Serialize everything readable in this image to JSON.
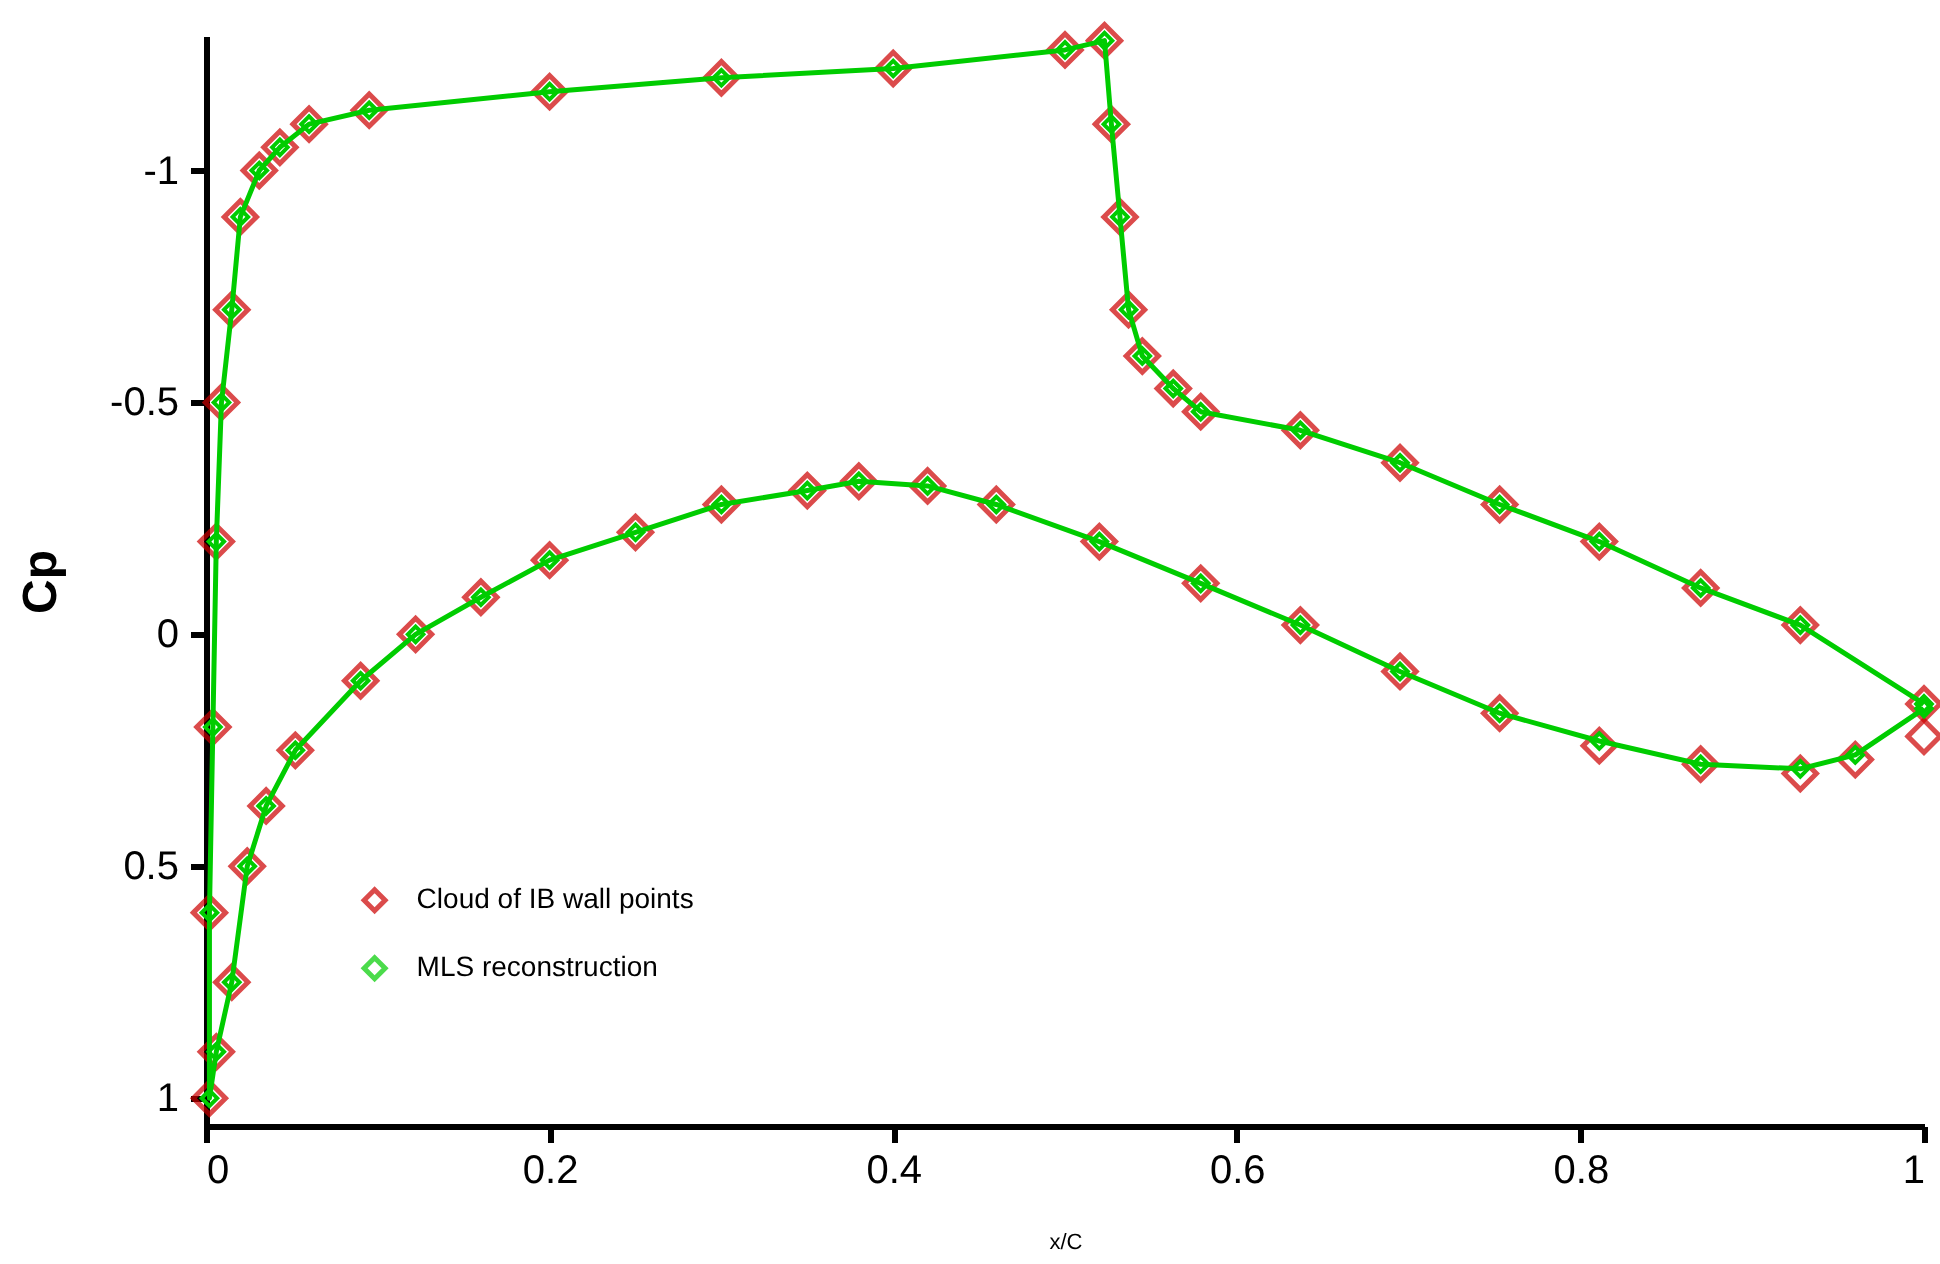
{
  "chart_data": {
    "type": "line",
    "xlabel": "x/C",
    "ylabel": "Cp",
    "xlim": [
      0,
      1
    ],
    "xticks": [
      0,
      0.2,
      0.4,
      0.6,
      0.8,
      1
    ],
    "ylim": [
      1.06,
      -1.29
    ],
    "yticks": [
      -1,
      -0.5,
      0,
      0.5,
      1
    ],
    "legend": "bottom left",
    "marker": "diamond",
    "x": [
      1.0,
      0.96,
      0.928,
      0.87,
      0.811,
      0.753,
      0.695,
      0.637,
      0.579,
      0.52,
      0.46,
      0.42,
      0.38,
      0.35,
      0.3,
      0.25,
      0.2,
      0.16,
      0.122,
      0.09,
      0.052,
      0.035,
      0.024,
      0.015,
      0.006,
      0.002,
      0.002,
      0.004,
      0.006,
      0.009,
      0.015,
      0.02,
      0.031,
      0.043,
      0.06,
      0.095,
      0.2,
      0.3,
      0.4,
      0.5,
      0.523,
      0.527,
      0.532,
      0.537,
      0.545,
      0.563,
      0.579,
      0.637,
      0.695,
      0.753,
      0.811,
      0.87,
      0.928,
      1.0
    ],
    "series": [
      {
        "name": "Cloud of IB wall points",
        "type": "scatter",
        "color": "#cc0000",
        "values": [
          0.22,
          0.27,
          0.3,
          0.28,
          0.24,
          0.17,
          0.08,
          -0.02,
          -0.11,
          -0.2,
          -0.28,
          -0.32,
          -0.33,
          -0.31,
          -0.28,
          -0.22,
          -0.16,
          -0.08,
          0,
          0.1,
          0.25,
          0.37,
          0.5,
          0.75,
          0.9,
          1.0,
          0.6,
          0.2,
          -0.2,
          -0.5,
          -0.7,
          -0.9,
          -1.0,
          -1.05,
          -1.1,
          -1.13,
          -1.17,
          -1.2,
          -1.22,
          -1.26,
          -1.28,
          -1.1,
          -0.9,
          -0.7,
          -0.6,
          -0.53,
          -0.48,
          -0.44,
          -0.37,
          -0.28,
          -0.2,
          -0.1,
          -0.02,
          0.15
        ]
      },
      {
        "name": "MLS reconstruction",
        "color": "#00cc00",
        "values": [
          0.16,
          0.26,
          0.29,
          0.28,
          0.23,
          0.17,
          0.08,
          -0.02,
          -0.11,
          -0.2,
          -0.28,
          -0.32,
          -0.33,
          -0.31,
          -0.28,
          -0.22,
          -0.16,
          -0.08,
          0,
          0.1,
          0.25,
          0.37,
          0.5,
          0.75,
          0.9,
          1.0,
          0.6,
          0.2,
          -0.2,
          -0.5,
          -0.7,
          -0.9,
          -1.0,
          -1.05,
          -1.1,
          -1.13,
          -1.17,
          -1.2,
          -1.22,
          -1.26,
          -1.28,
          -1.1,
          -0.9,
          -0.7,
          -0.6,
          -0.53,
          -0.48,
          -0.44,
          -0.37,
          -0.28,
          -0.2,
          -0.1,
          -0.02,
          0.15
        ]
      }
    ]
  }
}
